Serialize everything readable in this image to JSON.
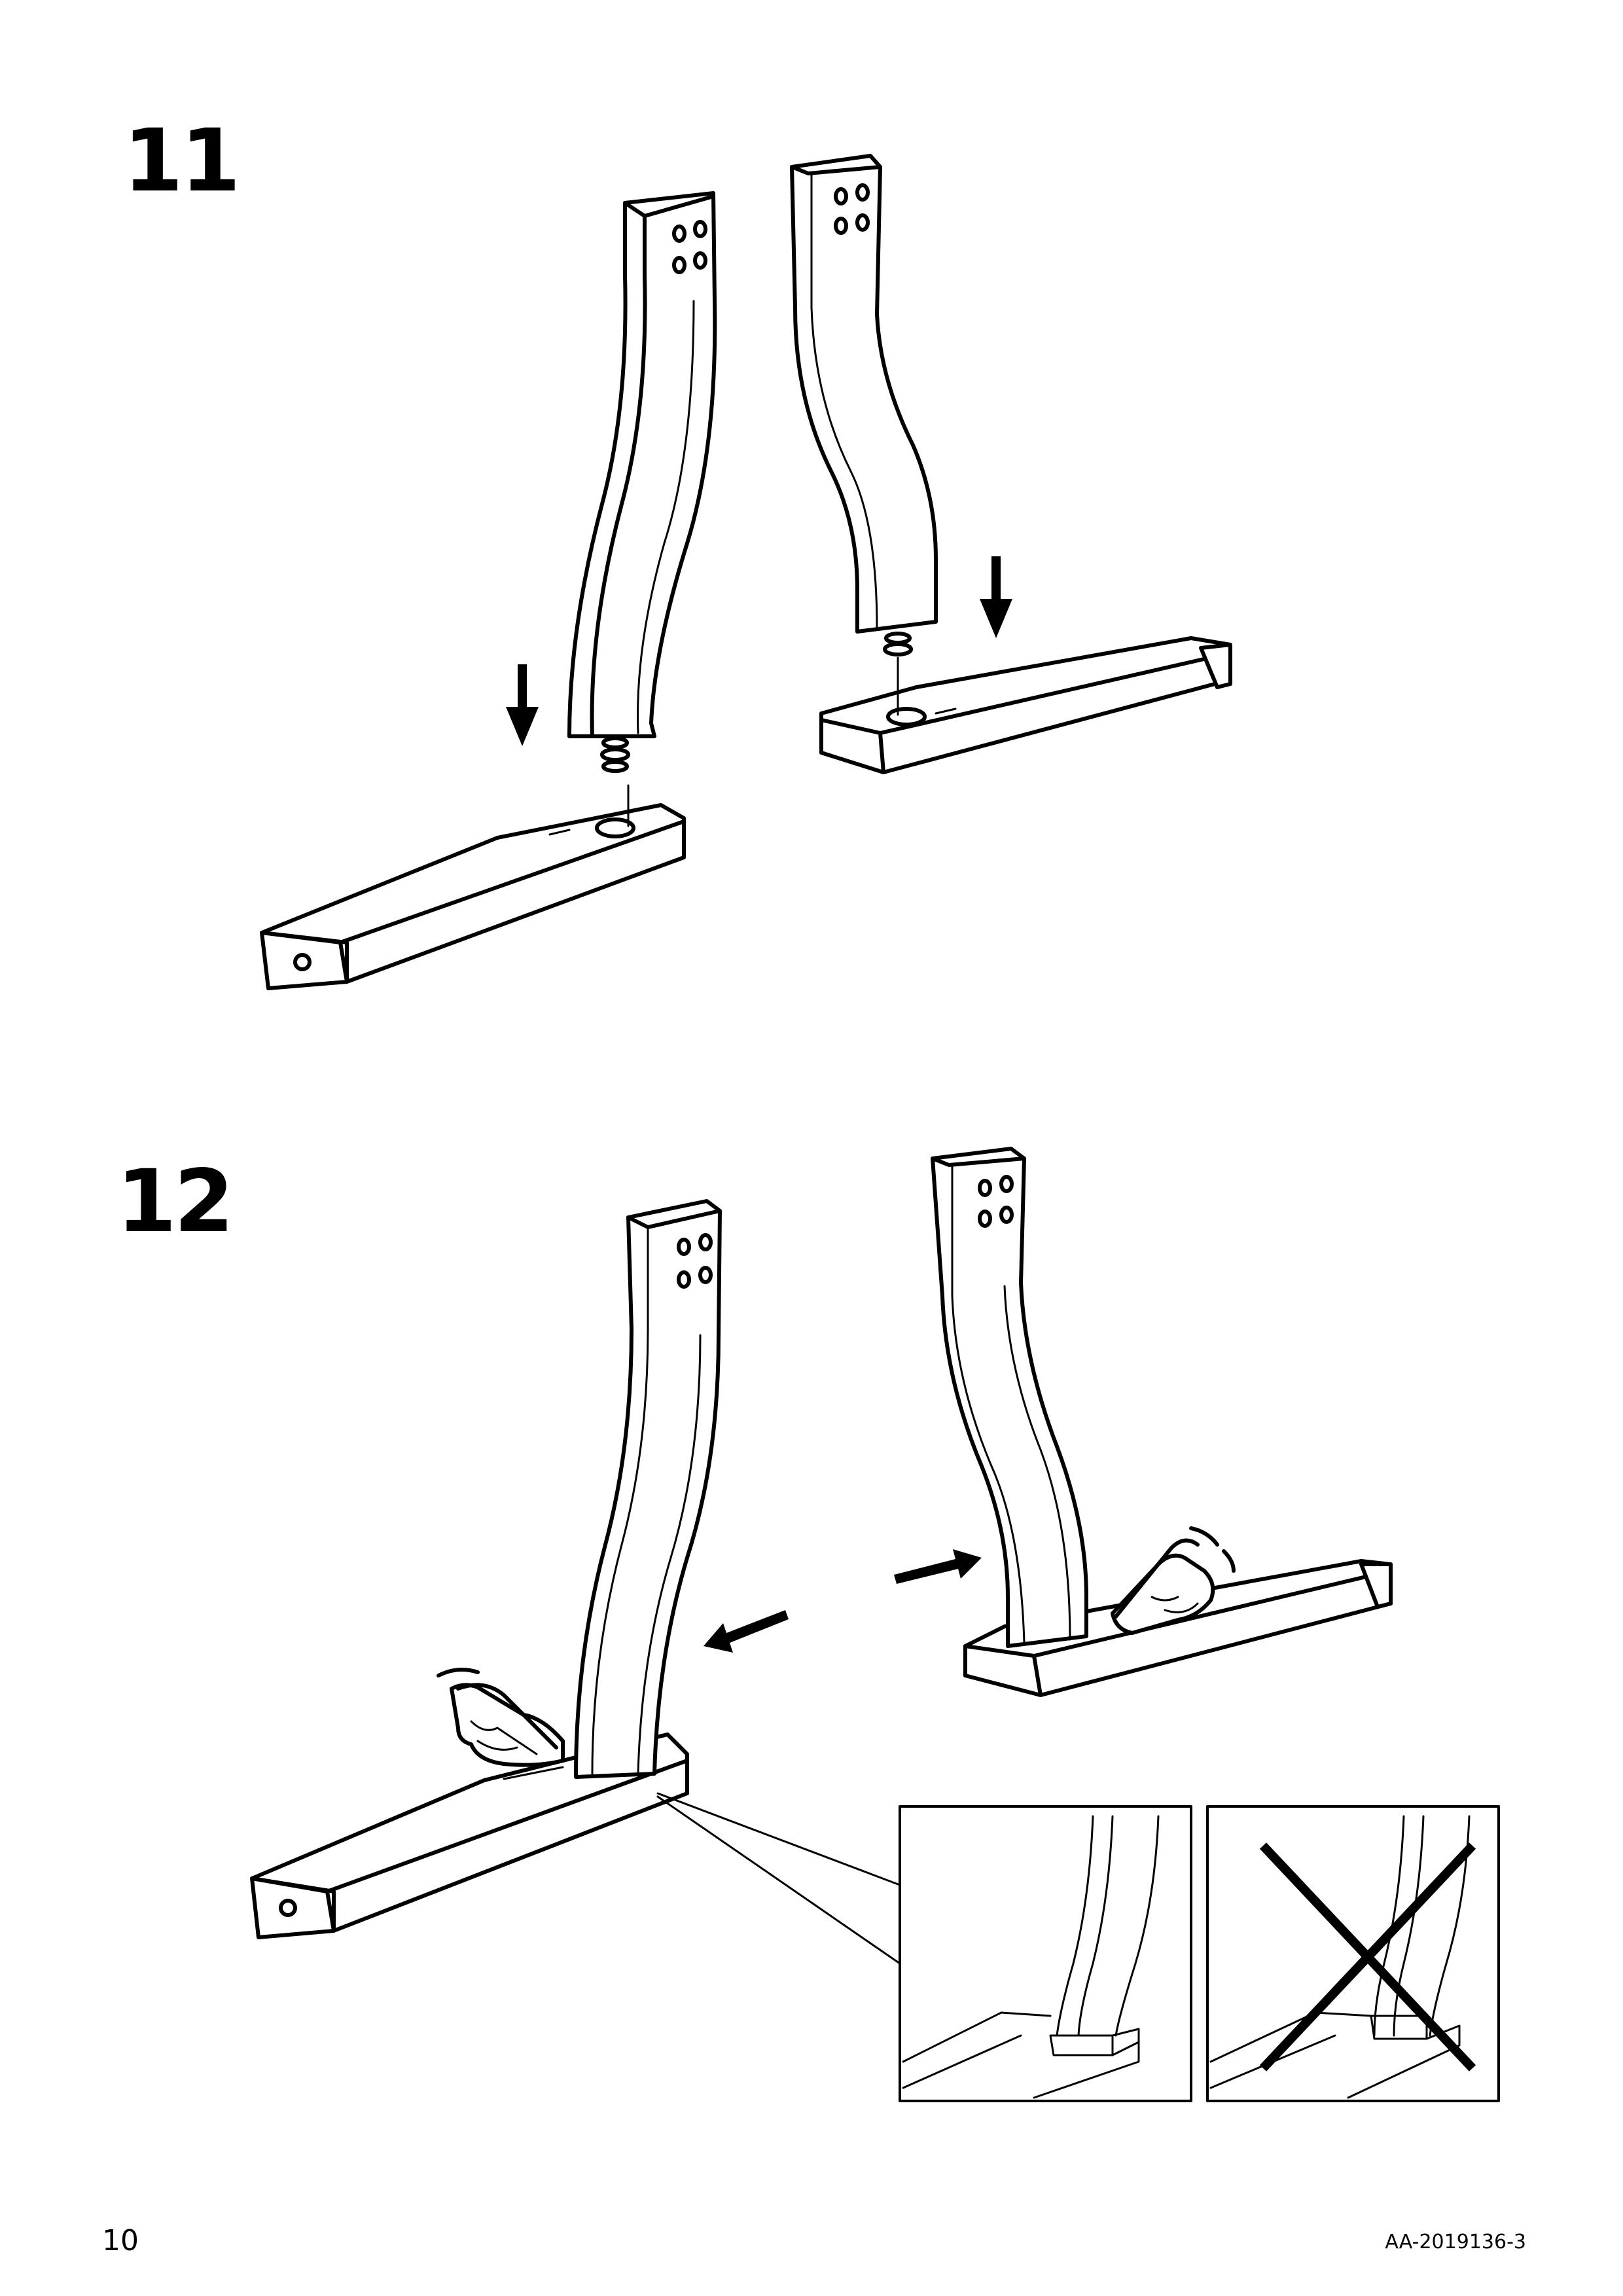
{
  "steps": [
    {
      "number": "11"
    },
    {
      "number": "12"
    }
  ],
  "footer": {
    "page_number": "10",
    "document_code": "AA-2019136-3"
  },
  "icons": {
    "push_arrow": "down-arrow-icon",
    "slide_arrow": "slide-arrow-icon",
    "pointing_hand": "pointing-hand-icon",
    "wrong_mark": "cross-out-icon"
  }
}
